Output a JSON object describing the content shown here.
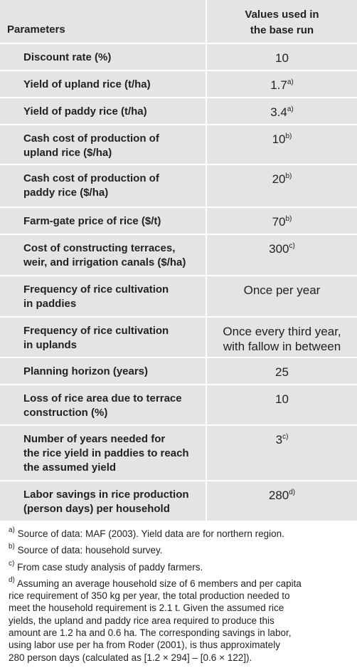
{
  "table": {
    "header": {
      "parameter": [
        "Parameters"
      ],
      "value": [
        "Values used in",
        "the base run"
      ]
    },
    "rows": [
      {
        "parameter": [
          "Discount rate (%)"
        ],
        "value": [
          "10"
        ]
      },
      {
        "parameter": [
          "Yield of upland rice (t/ha)"
        ],
        "value": [
          "1.7"
        ],
        "note": "a)"
      },
      {
        "parameter": [
          "Yield of paddy rice (t/ha)"
        ],
        "value": [
          "3.4"
        ],
        "note": "a)"
      },
      {
        "parameter": [
          "Cash cost of production of",
          "upland rice ($/ha)"
        ],
        "value": [
          "10"
        ],
        "note": "b)"
      },
      {
        "parameter": [
          "Cash cost of production of",
          "paddy rice ($/ha)"
        ],
        "value": [
          "20"
        ],
        "note": "b)"
      },
      {
        "parameter": [
          "Farm-gate price of rice ($/t)"
        ],
        "value": [
          "70"
        ],
        "note": "b)"
      },
      {
        "parameter": [
          "Cost of constructing terraces,",
          "weir, and irrigation canals ($/ha)"
        ],
        "value": [
          "300"
        ],
        "note": "c)"
      },
      {
        "parameter": [
          "Frequency of rice cultivation",
          "in paddies"
        ],
        "value": [
          "Once per year"
        ]
      },
      {
        "parameter": [
          "Frequency of rice cultivation",
          "in uplands"
        ],
        "value": [
          "Once every third year,",
          "with fallow in between"
        ]
      },
      {
        "parameter": [
          "Planning horizon (years)"
        ],
        "value": [
          "25"
        ]
      },
      {
        "parameter": [
          "Loss of rice area due to terrace",
          "construction (%)"
        ],
        "value": [
          "10"
        ]
      },
      {
        "parameter": [
          "Number of years needed for",
          "the rice yield in paddies to reach",
          "the assumed yield"
        ],
        "value": [
          "3"
        ],
        "note": "c)"
      },
      {
        "parameter": [
          "Labor savings in rice production",
          "(person days) per household"
        ],
        "value": [
          "280"
        ],
        "note": "d)"
      }
    ]
  },
  "footnotes": [
    {
      "marker": "a)",
      "lines": [
        "Source of data: MAF (2003). Yield data are for northern region."
      ]
    },
    {
      "marker": "b)",
      "lines": [
        "Source of data: household survey."
      ]
    },
    {
      "marker": "c)",
      "lines": [
        "From case study analysis of paddy farmers."
      ]
    },
    {
      "marker": "d)",
      "lines": [
        "Assuming an average household size of 6 members and per capita",
        "rice requirement of 350 kg per year, the total production needed to",
        "meet the household requirement is 2.1 t. Given the assumed rice",
        "yields, the upland and paddy rice area required to produce this",
        "amount are 1.2 ha and 0.6 ha. The corresponding savings in labor,",
        "using labor use per ha from Roder (2001), is thus approximately",
        "280 person days (calculated as [1.2 × 294] – [0.6 × 122])."
      ]
    }
  ]
}
